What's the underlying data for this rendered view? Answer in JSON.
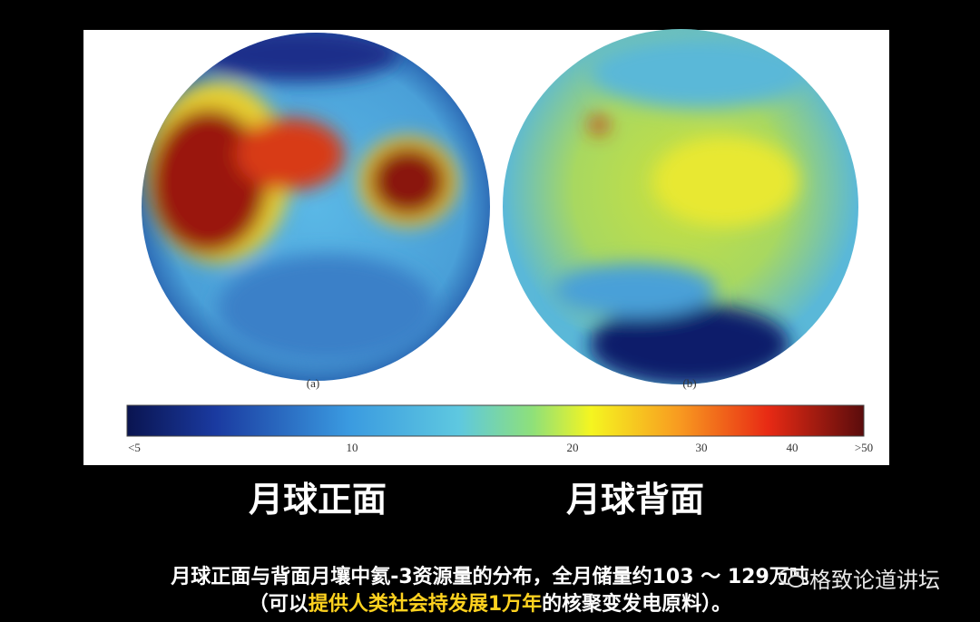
{
  "figure": {
    "panel_labels": [
      "(a)",
      "(b)"
    ],
    "colorbar": {
      "labels": [
        "<5",
        "10",
        "20",
        "30",
        "40",
        ">50"
      ]
    }
  },
  "headings": [
    "月球正面",
    "月球背面"
  ],
  "caption": {
    "line1": "月球正面与背面月壤中氦-3资源量的分布，全月储量约103 ～ 129万吨",
    "line2": {
      "before": "（可以",
      "highlight": "提供人类社会持发展1万年",
      "after": "的核聚变发电原料）。"
    }
  },
  "watermark": "格致论道讲坛"
}
